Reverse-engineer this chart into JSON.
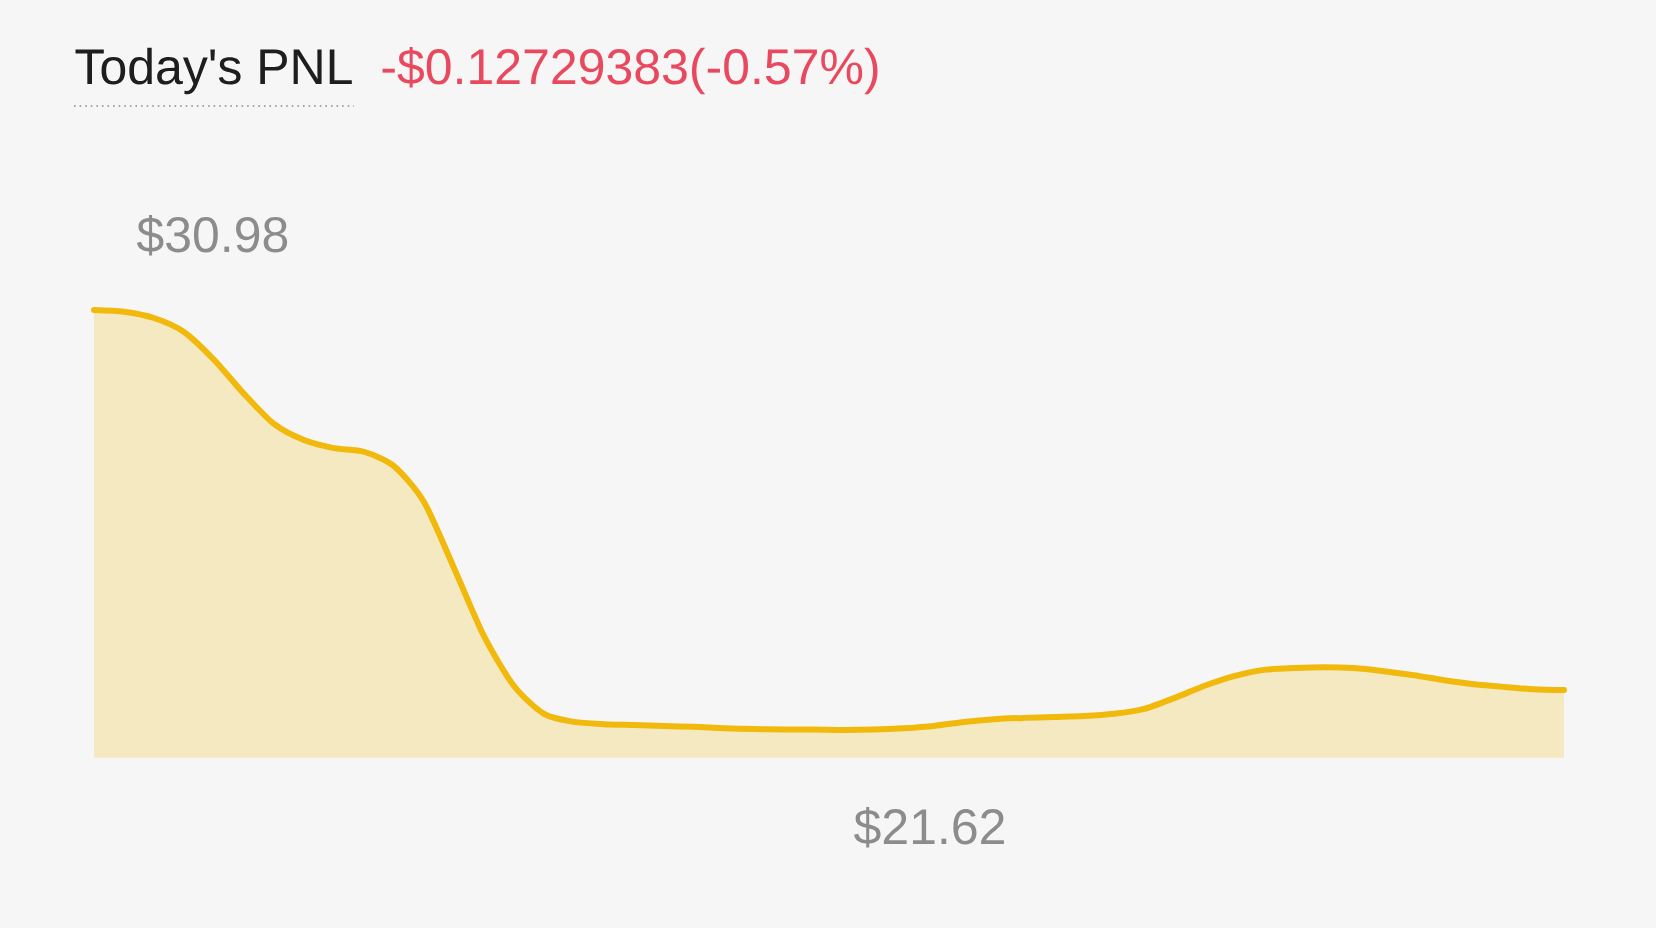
{
  "chart_data": {
    "type": "area",
    "title": "Today's PNL",
    "subtitle": "-$0.12729383(-0.57%)",
    "categories": [
      null,
      null,
      null,
      null,
      null,
      null,
      null,
      null,
      null,
      null,
      null,
      null,
      null,
      null,
      null,
      null,
      null,
      null,
      null,
      null,
      null,
      null,
      null,
      null,
      null,
      null,
      null,
      null,
      null,
      null,
      null,
      null,
      null,
      null,
      null,
      null,
      null,
      null,
      null,
      null,
      null,
      null,
      null,
      null,
      null,
      null,
      null,
      null,
      null,
      null
    ],
    "values": [
      30.98,
      30.94,
      30.8,
      30.49,
      29.87,
      29.11,
      28.44,
      28.08,
      27.9,
      27.82,
      27.5,
      26.7,
      25.23,
      23.71,
      22.6,
      21.98,
      21.8,
      21.75,
      21.73,
      21.71,
      21.69,
      21.66,
      21.64,
      21.63,
      21.63,
      21.62,
      21.63,
      21.66,
      21.71,
      21.8,
      21.86,
      21.89,
      21.91,
      21.93,
      21.98,
      22.09,
      22.33,
      22.6,
      22.82,
      22.96,
      23.0,
      23.02,
      23.0,
      22.93,
      22.84,
      22.73,
      22.64,
      22.58,
      22.53,
      22.51
    ],
    "value_labels": [
      "$30.98",
      null,
      null,
      null,
      null,
      null,
      null,
      null,
      null,
      null,
      null,
      null,
      null,
      null,
      null,
      null,
      null,
      null,
      null,
      null,
      null,
      null,
      null,
      null,
      null,
      "$21.62",
      null,
      null,
      null,
      null,
      null,
      null,
      null,
      null,
      null,
      null,
      null,
      null,
      null,
      null,
      null,
      null,
      null,
      null,
      null,
      null,
      null,
      null,
      null,
      null
    ],
    "color": "#f0b90b"
  }
}
